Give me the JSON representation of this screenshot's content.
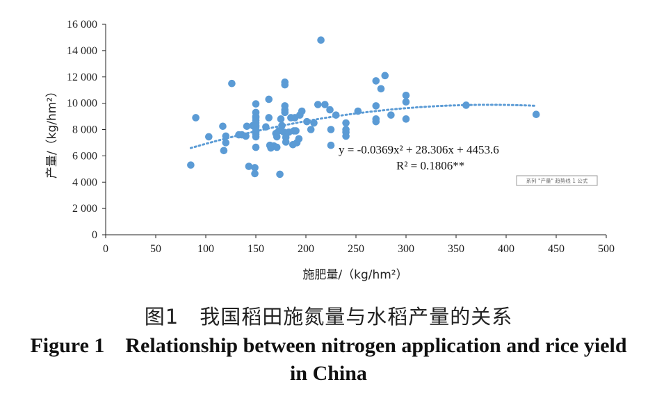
{
  "chart_data": {
    "type": "scatter",
    "xlabel": "施肥量/（kg/hm²）",
    "ylabel": "产量/（kg/hm²）",
    "xlim": [
      0,
      500
    ],
    "ylim": [
      0,
      16000
    ],
    "x_ticks": [
      "0",
      "50",
      "100",
      "150",
      "200",
      "250",
      "300",
      "350",
      "400",
      "450",
      "500"
    ],
    "y_ticks": [
      "0",
      "2 000",
      "4 000",
      "6 000",
      "8 000",
      "10 000",
      "12 000",
      "14 000",
      "16 000"
    ],
    "grid": false,
    "marker_color": "#5b9bd5",
    "trend_color": "#5b9bd5",
    "trendline": {
      "type": "polynomial",
      "a": -0.0369,
      "b": 28.306,
      "c": 4453.6,
      "x_range": [
        85,
        430
      ]
    },
    "equation_line1": "y = -0.0369x² + 28.306x + 4453.6",
    "equation_line2": "R² = 0.1806**",
    "tooltip_label": "系列 \"产量\" 趋势线 1 公式",
    "points": [
      [
        85,
        5300
      ],
      [
        90,
        8900
      ],
      [
        103,
        7450
      ],
      [
        117,
        8250
      ],
      [
        118,
        6400
      ],
      [
        120,
        7500
      ],
      [
        120,
        7000
      ],
      [
        126,
        11500
      ],
      [
        133,
        7600
      ],
      [
        136,
        7600
      ],
      [
        140,
        7500
      ],
      [
        141,
        8250
      ],
      [
        143,
        5200
      ],
      [
        147,
        8300
      ],
      [
        149,
        5100
      ],
      [
        149,
        4650
      ],
      [
        150,
        9950
      ],
      [
        150,
        9300
      ],
      [
        150,
        9000
      ],
      [
        150,
        8900
      ],
      [
        150,
        8700
      ],
      [
        150,
        8500
      ],
      [
        150,
        8300
      ],
      [
        150,
        8200
      ],
      [
        150,
        7950
      ],
      [
        150,
        7800
      ],
      [
        150,
        7650
      ],
      [
        150,
        7450
      ],
      [
        150,
        6650
      ],
      [
        160,
        8200
      ],
      [
        163,
        10300
      ],
      [
        163,
        8900
      ],
      [
        164,
        6800
      ],
      [
        165,
        6600
      ],
      [
        168,
        6750
      ],
      [
        170,
        7700
      ],
      [
        171,
        7450
      ],
      [
        171,
        6650
      ],
      [
        173,
        7900
      ],
      [
        174,
        4600
      ],
      [
        175,
        8800
      ],
      [
        176,
        8300
      ],
      [
        178,
        7800
      ],
      [
        179,
        11600
      ],
      [
        179,
        11400
      ],
      [
        179,
        9800
      ],
      [
        179,
        9500
      ],
      [
        179,
        9300
      ],
      [
        180,
        7400
      ],
      [
        180,
        7050
      ],
      [
        183,
        7800
      ],
      [
        185,
        8900
      ],
      [
        187,
        6850
      ],
      [
        188,
        7900
      ],
      [
        189,
        8900
      ],
      [
        190,
        7900
      ],
      [
        191,
        7000
      ],
      [
        193,
        7300
      ],
      [
        194,
        9100
      ],
      [
        196,
        9400
      ],
      [
        201,
        8600
      ],
      [
        205,
        8000
      ],
      [
        208,
        8500
      ],
      [
        212,
        9900
      ],
      [
        215,
        14800
      ],
      [
        219,
        9900
      ],
      [
        224,
        9500
      ],
      [
        225,
        8000
      ],
      [
        225,
        6800
      ],
      [
        230,
        9100
      ],
      [
        240,
        8500
      ],
      [
        240,
        8000
      ],
      [
        240,
        7800
      ],
      [
        240,
        7500
      ],
      [
        252,
        9400
      ],
      [
        270,
        11700
      ],
      [
        270,
        9800
      ],
      [
        270,
        8800
      ],
      [
        270,
        8600
      ],
      [
        275,
        11100
      ],
      [
        279,
        12100
      ],
      [
        285,
        9100
      ],
      [
        300,
        10600
      ],
      [
        300,
        10100
      ],
      [
        300,
        8800
      ],
      [
        360,
        9850
      ],
      [
        430,
        9150
      ]
    ]
  },
  "caption": {
    "cn": "图1　我国稻田施氮量与水稻产量的关系",
    "en": "Figure 1　Relationship between nitrogen application and rice yield in China"
  }
}
